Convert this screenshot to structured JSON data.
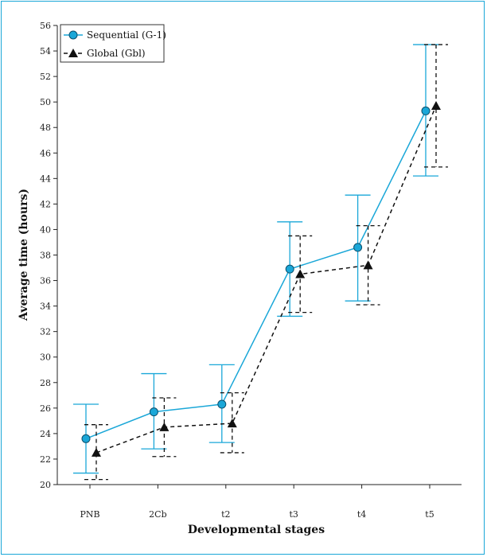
{
  "chart_data": {
    "type": "line",
    "xlabel": "Developmental stages",
    "ylabel": "Average time (hours)",
    "categories": [
      "PNB",
      "2Cb",
      "t2",
      "t3",
      "t4",
      "t5"
    ],
    "ylim": [
      20,
      56
    ],
    "yticks": [
      20,
      22,
      24,
      26,
      28,
      30,
      32,
      34,
      36,
      38,
      40,
      42,
      44,
      46,
      48,
      50,
      52,
      54,
      56
    ],
    "grid": false,
    "legend_position": "top-left",
    "series": [
      {
        "name": "Sequential (G-1)",
        "color": "#1aa7d8",
        "marker": "circle",
        "line_style": "solid",
        "values": [
          23.6,
          25.7,
          26.3,
          36.9,
          38.6,
          49.3
        ],
        "error_low": [
          20.9,
          22.8,
          23.3,
          33.2,
          34.4,
          44.2
        ],
        "error_high": [
          26.3,
          28.7,
          29.4,
          40.6,
          42.7,
          54.5
        ]
      },
      {
        "name": "Global (Gbl)",
        "color": "#111111",
        "marker": "triangle",
        "line_style": "dashed",
        "values": [
          22.5,
          24.5,
          24.8,
          36.5,
          37.2,
          49.7
        ],
        "error_low": [
          20.4,
          22.2,
          22.5,
          33.5,
          34.1,
          44.9
        ],
        "error_high": [
          24.7,
          26.8,
          27.2,
          39.5,
          40.3,
          54.5
        ]
      }
    ]
  }
}
